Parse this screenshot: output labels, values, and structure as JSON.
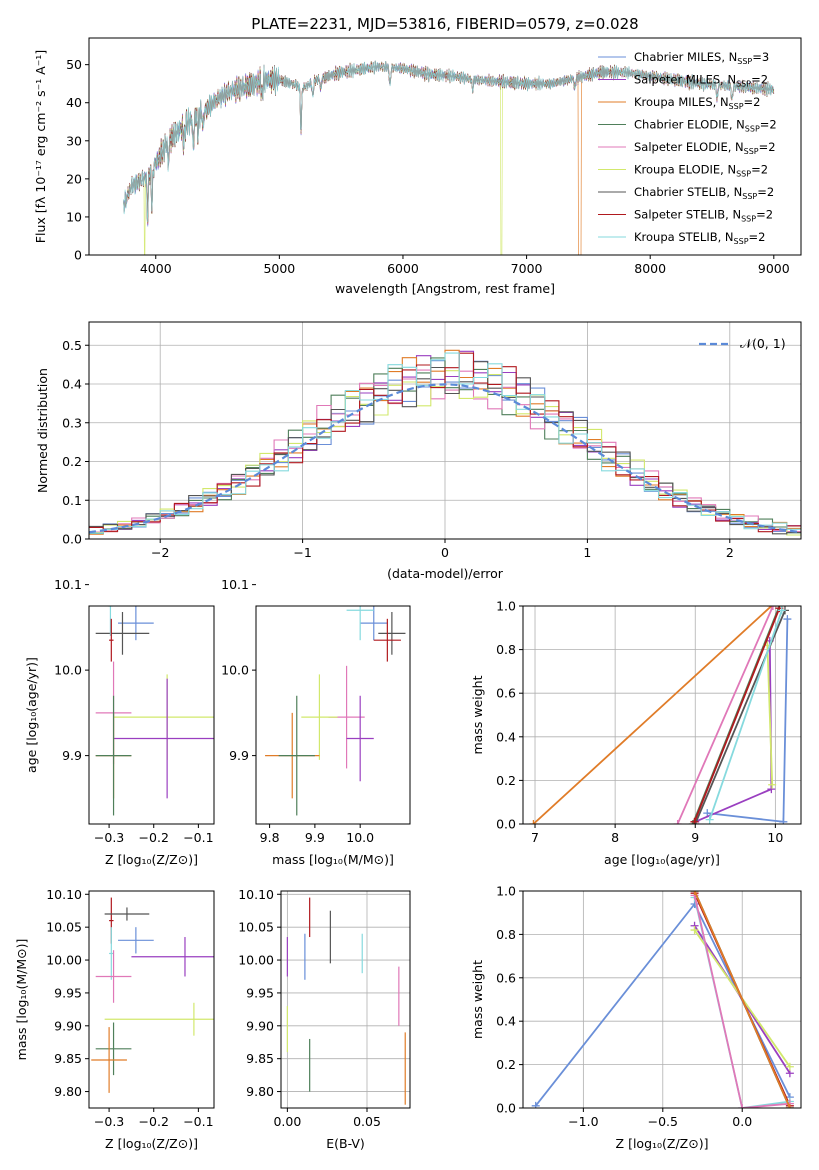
{
  "title": "PLATE=2231, MJD=53816, FIBERID=0579, z=0.028",
  "colors": {
    "c0": "#6a8fd8",
    "c1": "#9a3fc0",
    "c2": "#e07c28",
    "c3": "#4f7f5a",
    "c4": "#e078b8",
    "c5": "#d2e86c",
    "c6": "#555555",
    "c7": "#b0191e",
    "c8": "#86dade"
  },
  "legend_runs": [
    {
      "name": "Chabrier MILES",
      "nssp": "3",
      "color_key": "c0"
    },
    {
      "name": "Salpeter MILES",
      "nssp": "2",
      "color_key": "c1"
    },
    {
      "name": "Kroupa MILES",
      "nssp": "2",
      "color_key": "c2"
    },
    {
      "name": "Chabrier ELODIE",
      "nssp": "2",
      "color_key": "c3"
    },
    {
      "name": "Salpeter ELODIE",
      "nssp": "2",
      "color_key": "c4"
    },
    {
      "name": "Kroupa ELODIE",
      "nssp": "2",
      "color_key": "c5"
    },
    {
      "name": "Chabrier STELIB",
      "nssp": "2",
      "color_key": "c6"
    },
    {
      "name": "Salpeter STELIB",
      "nssp": "2",
      "color_key": "c7"
    },
    {
      "name": "Kroupa STELIB",
      "nssp": "2",
      "color_key": "c8"
    }
  ],
  "chart_data": [
    {
      "id": "spectrum",
      "type": "line",
      "xlabel": "wavelength [Angstrom, rest frame]",
      "ylabel": "Flux [fλ 10⁻¹⁷ erg cm⁻² s⁻¹ A⁻¹]",
      "xlim": [
        3460,
        9220
      ],
      "ylim": [
        0,
        57
      ],
      "xticks": [
        4000,
        5000,
        6000,
        7000,
        8000,
        9000
      ],
      "yticks": [
        0,
        10,
        20,
        30,
        40,
        50
      ],
      "continuum": {
        "x": [
          3740,
          3800,
          3900,
          4000,
          4100,
          4200,
          4300,
          4400,
          4500,
          4600,
          4700,
          4800,
          4900,
          5000,
          5100,
          5200,
          5300,
          5400,
          5500,
          5600,
          5800,
          6000,
          6200,
          6400,
          6600,
          6800,
          7000,
          7200,
          7400,
          7600,
          7800,
          8000,
          8200,
          8400,
          8600,
          8800,
          9000
        ],
        "y": [
          13,
          18,
          20,
          24,
          30,
          33,
          36,
          38,
          41,
          43,
          44,
          45,
          46,
          46,
          45,
          44,
          46,
          47,
          48,
          48.5,
          49.5,
          49,
          47.5,
          47,
          46,
          45.5,
          45,
          45,
          46.5,
          48,
          48,
          47,
          46,
          45,
          44.5,
          44,
          43.5
        ]
      },
      "absorption": [
        {
          "x": 3934,
          "depth": 12
        },
        {
          "x": 3969,
          "depth": 10
        },
        {
          "x": 4102,
          "depth": 6
        },
        {
          "x": 4227,
          "depth": 5
        },
        {
          "x": 4304,
          "depth": 8
        },
        {
          "x": 4340,
          "depth": 5
        },
        {
          "x": 4383,
          "depth": 4
        },
        {
          "x": 4861,
          "depth": 4
        },
        {
          "x": 5175,
          "depth": 12
        },
        {
          "x": 5270,
          "depth": 4
        },
        {
          "x": 5335,
          "depth": 3
        },
        {
          "x": 5895,
          "depth": 5
        },
        {
          "x": 6563,
          "depth": 3
        },
        {
          "x": 7390,
          "depth": 3
        },
        {
          "x": 8542,
          "depth": 4
        },
        {
          "x": 8662,
          "depth": 4
        }
      ],
      "artifacts": [
        {
          "color_key": "c5",
          "x_start": 3905,
          "x_end": 3915,
          "y": 0
        },
        {
          "color_key": "c5",
          "x_start": 6790,
          "x_end": 6802,
          "y": 0
        },
        {
          "color_key": "c2",
          "x_start": 7420,
          "x_end": 7440,
          "y": 0
        }
      ]
    },
    {
      "id": "residuals",
      "type": "histogram",
      "xlabel": "(data-model)/error",
      "ylabel": "Normed distribution",
      "xlim": [
        -2.5,
        2.5
      ],
      "ylim": [
        0,
        0.56
      ],
      "xticks": [
        -2,
        -1,
        0,
        1,
        2
      ],
      "yticks": [
        0.0,
        0.1,
        0.2,
        0.3,
        0.4,
        0.5
      ],
      "legend": "𝒩(0, 1)",
      "bin_edges": [
        -2.5,
        -2.4,
        -2.3,
        -2.2,
        -2.1,
        -2.0,
        -1.9,
        -1.8,
        -1.7,
        -1.6,
        -1.5,
        -1.4,
        -1.3,
        -1.2,
        -1.1,
        -1.0,
        -0.9,
        -0.8,
        -0.7,
        -0.6,
        -0.5,
        -0.4,
        -0.3,
        -0.2,
        -0.1,
        0.0,
        0.1,
        0.2,
        0.3,
        0.4,
        0.5,
        0.6,
        0.7,
        0.8,
        0.9,
        1.0,
        1.1,
        1.2,
        1.3,
        1.4,
        1.5,
        1.6,
        1.7,
        1.8,
        1.9,
        2.0,
        2.1,
        2.2,
        2.3,
        2.4,
        2.5
      ]
    },
    {
      "id": "age-vs-Z",
      "type": "scatter",
      "xlabel": "Z [log₁₀(Z/Z⊙)]",
      "ylabel": "age  [log₁₀(age/yr)]",
      "xlim": [
        -0.345,
        -0.065
      ],
      "ylim": [
        9.82,
        10.075
      ],
      "xticks": [
        -0.3,
        -0.2,
        -0.1
      ],
      "yticks": [
        9.9,
        10.0,
        10.1
      ],
      "points": [
        {
          "color_key": "c0",
          "x": -0.24,
          "xerr": 0.04,
          "y": 10.055,
          "yerr": 0.02
        },
        {
          "color_key": "c6",
          "x": -0.27,
          "xerr": 0.06,
          "y": 10.043,
          "yerr": 0.025
        },
        {
          "color_key": "c8",
          "x": -0.297,
          "xerr": 0.005,
          "y": 10.075,
          "yerr": 0.035
        },
        {
          "color_key": "c7",
          "x": -0.295,
          "xerr": 0.005,
          "y": 10.035,
          "yerr": 0.025
        },
        {
          "color_key": "c4",
          "x": -0.29,
          "xerr": 0.04,
          "y": 9.95,
          "yerr": 0.06
        },
        {
          "color_key": "c5",
          "x": -0.17,
          "xerr": 0.12,
          "y": 9.945,
          "yerr": 0.05
        },
        {
          "color_key": "c1",
          "x": -0.17,
          "xerr": 0.12,
          "y": 9.92,
          "yerr": 0.07
        },
        {
          "color_key": "c2",
          "x": -0.29,
          "xerr": 0.04,
          "y": 9.9,
          "yerr": 0.05
        },
        {
          "color_key": "c3",
          "x": -0.29,
          "xerr": 0.04,
          "y": 9.9,
          "yerr": 0.07
        }
      ]
    },
    {
      "id": "age-vs-mass",
      "type": "scatter",
      "xlabel": "mass [log₁₀(M/M⊙)]",
      "ylabel": "",
      "xlim": [
        9.77,
        10.11
      ],
      "ylim": [
        9.82,
        10.075
      ],
      "xticks": [
        9.8,
        9.9,
        10.0
      ],
      "yticks": [
        9.9,
        10.0,
        10.1
      ],
      "points": [
        {
          "color_key": "c0",
          "x": 10.03,
          "xerr": 0.03,
          "y": 10.055,
          "yerr": 0.02
        },
        {
          "color_key": "c6",
          "x": 10.07,
          "xerr": 0.03,
          "y": 10.043,
          "yerr": 0.025
        },
        {
          "color_key": "c8",
          "x": 10.0,
          "xerr": 0.03,
          "y": 10.07,
          "yerr": 0.035
        },
        {
          "color_key": "c7",
          "x": 10.06,
          "xerr": 0.03,
          "y": 10.035,
          "yerr": 0.025
        },
        {
          "color_key": "c4",
          "x": 9.97,
          "xerr": 0.04,
          "y": 9.945,
          "yerr": 0.06
        },
        {
          "color_key": "c5",
          "x": 9.91,
          "xerr": 0.04,
          "y": 9.945,
          "yerr": 0.05
        },
        {
          "color_key": "c1",
          "x": 10.0,
          "xerr": 0.03,
          "y": 9.92,
          "yerr": 0.05
        },
        {
          "color_key": "c2",
          "x": 9.85,
          "xerr": 0.06,
          "y": 9.9,
          "yerr": 0.05
        },
        {
          "color_key": "c3",
          "x": 9.86,
          "xerr": 0.04,
          "y": 9.9,
          "yerr": 0.07
        }
      ]
    },
    {
      "id": "weight-vs-age",
      "type": "line",
      "xlabel": "age  [log₁₀(age/yr)]",
      "ylabel": "mass weight",
      "xlim": [
        6.85,
        10.32
      ],
      "ylim": [
        0,
        1
      ],
      "xticks": [
        7,
        8,
        9,
        10
      ],
      "yticks": [
        0.0,
        0.2,
        0.4,
        0.6,
        0.8,
        1.0
      ],
      "series": [
        {
          "color_key": "c0",
          "x": [
            9.15,
            10.1,
            10.15
          ],
          "y": [
            0.05,
            0.01,
            0.94
          ]
        },
        {
          "color_key": "c1",
          "x": [
            9.0,
            9.95,
            9.93
          ],
          "y": [
            0.01,
            0.16,
            0.84
          ]
        },
        {
          "color_key": "c2",
          "x": [
            6.98,
            9.95
          ],
          "y": [
            0.0,
            1.0
          ]
        },
        {
          "color_key": "c3",
          "x": [
            8.97,
            10.05
          ],
          "y": [
            0.0,
            1.0
          ]
        },
        {
          "color_key": "c4",
          "x": [
            8.78,
            9.97
          ],
          "y": [
            0.0,
            1.0
          ]
        },
        {
          "color_key": "c5",
          "x": [
            9.96,
            9.9
          ],
          "y": [
            0.18,
            0.82
          ]
        },
        {
          "color_key": "c6",
          "x": [
            9.0,
            10.12
          ],
          "y": [
            0.0,
            0.98
          ]
        },
        {
          "color_key": "c7",
          "x": [
            8.99,
            10.05
          ],
          "y": [
            0.01,
            0.99
          ]
        },
        {
          "color_key": "c8",
          "x": [
            9.18,
            10.08
          ],
          "y": [
            0.02,
            0.98
          ]
        }
      ]
    },
    {
      "id": "mass-vs-Z",
      "type": "scatter",
      "xlabel": "Z [log₁₀(Z/Z⊙)]",
      "ylabel": "mass [log₁₀(M/M⊙)]",
      "xlim": [
        -0.345,
        -0.065
      ],
      "ylim": [
        9.775,
        10.105
      ],
      "xticks": [
        -0.3,
        -0.2,
        -0.1
      ],
      "yticks": [
        9.8,
        9.85,
        9.9,
        9.95,
        10.0,
        10.05,
        10.1
      ],
      "points": [
        {
          "color_key": "c7",
          "x": -0.295,
          "xerr": 0.005,
          "y": 10.06,
          "yerr": 0.035
        },
        {
          "color_key": "c6",
          "x": -0.26,
          "xerr": 0.05,
          "y": 10.07,
          "yerr": 0.01
        },
        {
          "color_key": "c0",
          "x": -0.24,
          "xerr": 0.04,
          "y": 10.03,
          "yerr": 0.02
        },
        {
          "color_key": "c8",
          "x": -0.295,
          "xerr": 0.005,
          "y": 10.01,
          "yerr": 0.04
        },
        {
          "color_key": "c1",
          "x": -0.13,
          "xerr": 0.12,
          "y": 10.005,
          "yerr": 0.03
        },
        {
          "color_key": "c4",
          "x": -0.29,
          "xerr": 0.04,
          "y": 9.975,
          "yerr": 0.04
        },
        {
          "color_key": "c5",
          "x": -0.11,
          "xerr": 0.2,
          "y": 9.91,
          "yerr": 0.025
        },
        {
          "color_key": "c3",
          "x": -0.29,
          "xerr": 0.04,
          "y": 9.865,
          "yerr": 0.04
        },
        {
          "color_key": "c2",
          "x": -0.3,
          "xerr": 0.04,
          "y": 9.848,
          "yerr": 0.05
        }
      ]
    },
    {
      "id": "mass-vs-EBV",
      "type": "scatter",
      "xlabel": "E(B-V)",
      "ylabel": "",
      "xlim": [
        -0.004,
        0.077
      ],
      "ylim": [
        9.775,
        10.105
      ],
      "xticks": [
        0.0,
        0.05
      ],
      "yticks": [
        9.8,
        9.85,
        9.9,
        9.95,
        10.0,
        10.05,
        10.1
      ],
      "points": [
        {
          "color_key": "c1",
          "x": 0.0,
          "y": 10.005,
          "yerr": 0.03
        },
        {
          "color_key": "c5",
          "x": 0.0,
          "y": 9.895,
          "yerr": 0.035
        },
        {
          "color_key": "c0",
          "x": 0.011,
          "y": 10.005,
          "yerr": 0.035
        },
        {
          "color_key": "c7",
          "x": 0.014,
          "y": 10.065,
          "yerr": 0.03
        },
        {
          "color_key": "c3",
          "x": 0.014,
          "y": 9.84,
          "yerr": 0.04
        },
        {
          "color_key": "c6",
          "x": 0.027,
          "y": 10.035,
          "yerr": 0.04
        },
        {
          "color_key": "c8",
          "x": 0.047,
          "y": 10.01,
          "yerr": 0.03
        },
        {
          "color_key": "c4",
          "x": 0.07,
          "y": 9.945,
          "yerr": 0.045
        },
        {
          "color_key": "c2",
          "x": 0.074,
          "y": 9.835,
          "yerr": 0.055
        }
      ]
    },
    {
      "id": "weight-vs-Z",
      "type": "line",
      "xlabel": "Z [log₁₀(Z/Z⊙)]",
      "ylabel": "mass weight",
      "xlim": [
        -1.38,
        0.37
      ],
      "ylim": [
        0,
        1
      ],
      "xticks": [
        -1.0,
        -0.5,
        0.0
      ],
      "yticks": [
        0.0,
        0.2,
        0.4,
        0.6,
        0.8,
        1.0
      ],
      "series": [
        {
          "color_key": "c0",
          "x": [
            -1.3,
            -0.3,
            0.3
          ],
          "y": [
            0.01,
            0.94,
            0.05
          ]
        },
        {
          "color_key": "c1",
          "x": [
            -0.3,
            0.3
          ],
          "y": [
            0.84,
            0.16
          ]
        },
        {
          "color_key": "c5",
          "x": [
            -0.3,
            0.3
          ],
          "y": [
            0.82,
            0.19
          ]
        },
        {
          "color_key": "c3",
          "x": [
            -0.3,
            0.3
          ],
          "y": [
            1.0,
            0.0
          ]
        },
        {
          "color_key": "c6",
          "x": [
            -0.3,
            0.3
          ],
          "y": [
            1.0,
            0.0
          ]
        },
        {
          "color_key": "c7",
          "x": [
            -0.3,
            0.3
          ],
          "y": [
            0.99,
            0.01
          ]
        },
        {
          "color_key": "c8",
          "x": [
            -0.3,
            0.0,
            0.3
          ],
          "y": [
            0.97,
            0.0,
            0.03
          ]
        },
        {
          "color_key": "c4",
          "x": [
            -0.3,
            0.0,
            0.3
          ],
          "y": [
            0.98,
            0.0,
            0.02
          ]
        },
        {
          "color_key": "c2",
          "x": [
            -0.3,
            0.3
          ],
          "y": [
            1.0,
            0.0
          ]
        }
      ]
    }
  ]
}
